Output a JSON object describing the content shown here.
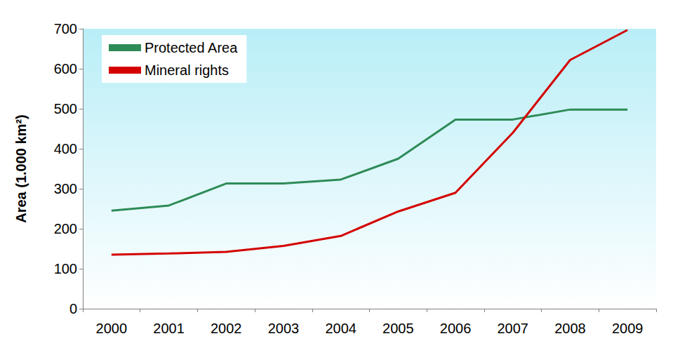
{
  "chart_data": {
    "type": "line",
    "y_label": "Area (1.000 km²)",
    "categories": [
      "2000",
      "2001",
      "2002",
      "2003",
      "2004",
      "2005",
      "2006",
      "2007",
      "2008",
      "2009"
    ],
    "series": [
      {
        "name": "Protected Area",
        "color": "#2e8b57",
        "values": [
          245,
          258,
          313,
          313,
          323,
          375,
          473,
          473,
          498,
          498
        ]
      },
      {
        "name": "Mineral rights",
        "color": "#d40000",
        "values": [
          135,
          138,
          142,
          157,
          182,
          243,
          290,
          440,
          622,
          697
        ]
      }
    ],
    "ylim": [
      0,
      700
    ],
    "yticks": [
      0,
      100,
      200,
      300,
      400,
      500,
      600,
      700
    ],
    "grid": false,
    "legend": "upper left"
  }
}
